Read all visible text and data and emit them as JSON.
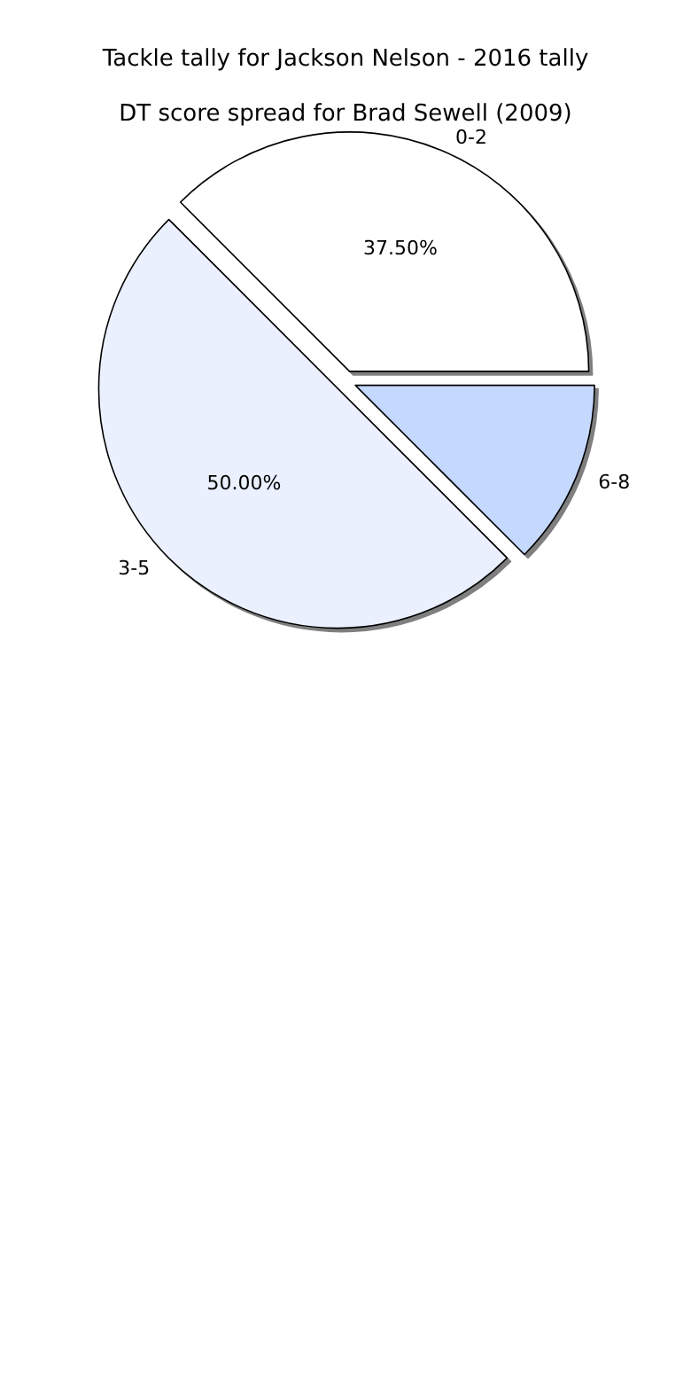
{
  "chart_data": {
    "type": "pie",
    "title": "Tackle tally for Jackson Nelson - 2016 tally",
    "subtitle": "DT score spread for Brad Sewell (2009)",
    "categories": [
      "0-2",
      "3-5",
      "6-8"
    ],
    "values": [
      37.5,
      50,
      12.5
    ],
    "colors": [
      "#ffffff",
      "#eaf0fe",
      "#c5d8fe"
    ],
    "value_labels": [
      "37.50%",
      "50.00%",
      null
    ],
    "legend": false
  }
}
